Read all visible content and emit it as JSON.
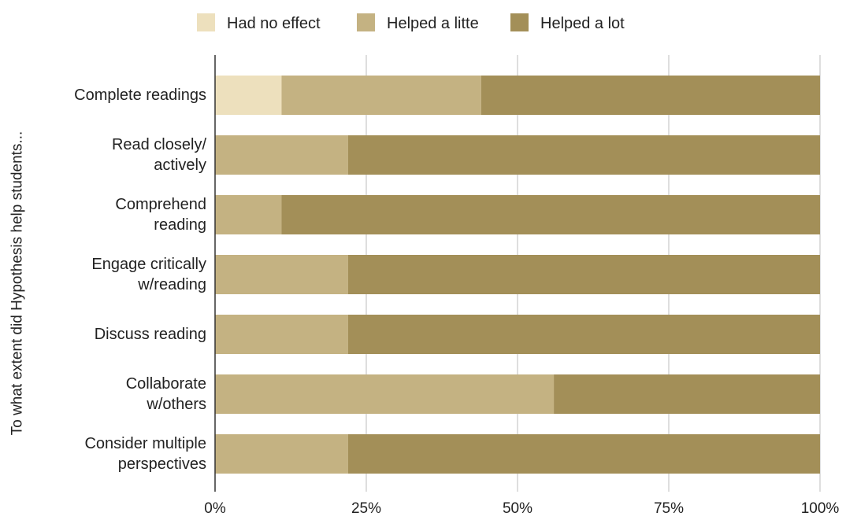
{
  "chart_data": {
    "type": "bar",
    "orientation": "horizontal",
    "stacked": "percent",
    "ylabel": "To what extent did Hypothesis help students...",
    "xlabel": "",
    "categories": [
      [
        "Complete readings"
      ],
      [
        "Read closely/",
        "actively"
      ],
      [
        "Comprehend",
        "reading"
      ],
      [
        "Engage critically",
        "w/reading"
      ],
      [
        "Discuss reading"
      ],
      [
        "Collaborate",
        "w/others"
      ],
      [
        "Consider multiple",
        "perspectives"
      ]
    ],
    "series": [
      {
        "name": "Had no effect",
        "color": "#ede0bd",
        "values": [
          11,
          0,
          0,
          0,
          0,
          0,
          0
        ]
      },
      {
        "name": "Helped a litte",
        "color": "#c4b282",
        "values": [
          33,
          22,
          11,
          22,
          22,
          56,
          22
        ]
      },
      {
        "name": "Helped a lot",
        "color": "#a38f58",
        "values": [
          56,
          78,
          89,
          78,
          78,
          44,
          78
        ]
      }
    ],
    "xlim": [
      0,
      100
    ],
    "xticks": [
      0,
      25,
      50,
      75,
      100
    ],
    "xtick_labels": [
      "0%",
      "25%",
      "50%",
      "75%",
      "100%"
    ],
    "grid": true,
    "legend_position": "top"
  }
}
